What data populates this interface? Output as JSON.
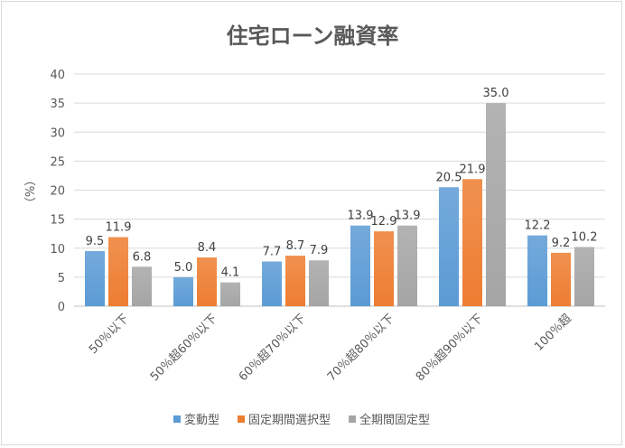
{
  "chart_data": {
    "type": "bar",
    "title": "住宅ローン融資率",
    "xlabel": "",
    "ylabel": "（%）",
    "ylim": [
      0,
      40
    ],
    "yticks": [
      0,
      5,
      10,
      15,
      20,
      25,
      30,
      35,
      40
    ],
    "grid": true,
    "legend": "bottom",
    "categories": [
      "50％以下",
      "50％超60％以下",
      "60％超70％以下",
      "70％超80％以下",
      "80％超90％以下",
      "100％超"
    ],
    "series": [
      {
        "name": "変動型",
        "color": "#5b9bd5",
        "values": [
          9.5,
          5.0,
          7.7,
          13.9,
          20.5,
          12.2
        ]
      },
      {
        "name": "固定期間選択型",
        "color": "#ed7d31",
        "values": [
          11.9,
          8.4,
          8.7,
          12.9,
          21.9,
          9.2
        ]
      },
      {
        "name": "全期間固定型",
        "color": "#a5a5a5",
        "values": [
          6.8,
          4.1,
          7.9,
          13.9,
          35.0,
          10.2
        ]
      }
    ]
  }
}
